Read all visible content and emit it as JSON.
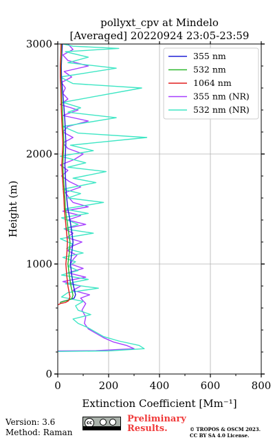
{
  "chart_data": {
    "type": "line",
    "title": "pollyxt_cpv at Mindelo",
    "subtitle": "[Averaged] 20220924 23:05-23:59",
    "xlabel": "Extinction Coefficient [Mm⁻¹]",
    "ylabel": "Height (m)",
    "xlim": [
      0,
      800
    ],
    "ylim": [
      0,
      3000
    ],
    "xticks": [
      0,
      200,
      400,
      600,
      800
    ],
    "yticks": [
      0,
      1000,
      2000,
      3000
    ],
    "grid": true,
    "legend_position": "top-right",
    "series": [
      {
        "name": "355 nm",
        "color": "#1f1fd6",
        "points": [
          [
            8,
            650
          ],
          [
            20,
            660
          ],
          [
            45,
            675
          ],
          [
            65,
            690
          ],
          [
            70,
            720
          ],
          [
            62,
            800
          ],
          [
            55,
            900
          ],
          [
            50,
            1000
          ],
          [
            55,
            1100
          ],
          [
            60,
            1200
          ],
          [
            55,
            1300
          ],
          [
            48,
            1400
          ],
          [
            40,
            1500
          ],
          [
            35,
            1600
          ],
          [
            32,
            1700
          ],
          [
            30,
            1800
          ],
          [
            28,
            1900
          ],
          [
            30,
            2000
          ],
          [
            32,
            2100
          ],
          [
            30,
            2200
          ],
          [
            28,
            2300
          ],
          [
            25,
            2400
          ],
          [
            22,
            2500
          ],
          [
            18,
            2600
          ],
          [
            15,
            2700
          ],
          [
            14,
            2800
          ],
          [
            16,
            2900
          ],
          [
            18,
            3000
          ]
        ]
      },
      {
        "name": "532 nm",
        "color": "#2bb82b",
        "points": [
          [
            8,
            650
          ],
          [
            20,
            658
          ],
          [
            40,
            670
          ],
          [
            55,
            685
          ],
          [
            60,
            715
          ],
          [
            52,
            800
          ],
          [
            45,
            900
          ],
          [
            40,
            1000
          ],
          [
            45,
            1100
          ],
          [
            48,
            1200
          ],
          [
            42,
            1300
          ],
          [
            36,
            1400
          ],
          [
            30,
            1500
          ],
          [
            28,
            1600
          ],
          [
            25,
            1700
          ],
          [
            22,
            1800
          ],
          [
            20,
            1900
          ],
          [
            22,
            2000
          ],
          [
            24,
            2100
          ],
          [
            22,
            2200
          ],
          [
            20,
            2300
          ],
          [
            18,
            2400
          ],
          [
            16,
            2500
          ],
          [
            14,
            2600
          ],
          [
            12,
            2700
          ],
          [
            12,
            2800
          ],
          [
            14,
            2900
          ],
          [
            15,
            3000
          ]
        ]
      },
      {
        "name": "1064 nm",
        "color": "#e01b1b",
        "points": [
          [
            2,
            630
          ],
          [
            10,
            640
          ],
          [
            30,
            650
          ],
          [
            42,
            665
          ],
          [
            48,
            700
          ],
          [
            40,
            800
          ],
          [
            35,
            900
          ],
          [
            32,
            1000
          ],
          [
            36,
            1100
          ],
          [
            38,
            1200
          ],
          [
            34,
            1300
          ],
          [
            30,
            1400
          ],
          [
            26,
            1500
          ],
          [
            24,
            1600
          ],
          [
            21,
            1700
          ],
          [
            18,
            1800
          ],
          [
            16,
            1900
          ],
          [
            18,
            2000
          ],
          [
            20,
            2100
          ],
          [
            18,
            2200
          ],
          [
            16,
            2300
          ],
          [
            14,
            2400
          ],
          [
            13,
            2500
          ],
          [
            12,
            2600
          ],
          [
            10,
            2700
          ],
          [
            10,
            2800
          ],
          [
            12,
            2900
          ],
          [
            13,
            3000
          ]
        ]
      },
      {
        "name": "355 nm (NR)",
        "color": "#a53dff",
        "points": [
          [
            2,
            210
          ],
          [
            150,
            212
          ],
          [
            300,
            230
          ],
          [
            270,
            260
          ],
          [
            220,
            290
          ],
          [
            180,
            330
          ],
          [
            150,
            370
          ],
          [
            120,
            410
          ],
          [
            105,
            460
          ],
          [
            110,
            520
          ],
          [
            95,
            580
          ],
          [
            110,
            640
          ],
          [
            90,
            690
          ],
          [
            125,
            720
          ],
          [
            60,
            760
          ],
          [
            90,
            800
          ],
          [
            20,
            840
          ],
          [
            110,
            880
          ],
          [
            40,
            920
          ],
          [
            100,
            960
          ],
          [
            50,
            1000
          ],
          [
            60,
            1040
          ],
          [
            75,
            1080
          ],
          [
            40,
            1120
          ],
          [
            55,
            1160
          ],
          [
            95,
            1200
          ],
          [
            35,
            1240
          ],
          [
            60,
            1280
          ],
          [
            25,
            1320
          ],
          [
            110,
            1360
          ],
          [
            40,
            1400
          ],
          [
            90,
            1440
          ],
          [
            20,
            1480
          ],
          [
            120,
            1520
          ],
          [
            60,
            1560
          ],
          [
            45,
            1600
          ],
          [
            30,
            1650
          ],
          [
            90,
            1700
          ],
          [
            45,
            1750
          ],
          [
            15,
            1800
          ],
          [
            40,
            1850
          ],
          [
            10,
            1900
          ],
          [
            65,
            1950
          ],
          [
            100,
            2000
          ],
          [
            40,
            2050
          ],
          [
            20,
            2100
          ],
          [
            60,
            2150
          ],
          [
            20,
            2200
          ],
          [
            40,
            2250
          ],
          [
            120,
            2300
          ],
          [
            20,
            2350
          ],
          [
            80,
            2400
          ],
          [
            10,
            2450
          ],
          [
            40,
            2500
          ],
          [
            20,
            2550
          ],
          [
            30,
            2600
          ],
          [
            15,
            2650
          ],
          [
            55,
            2700
          ],
          [
            25,
            2750
          ],
          [
            120,
            2800
          ],
          [
            40,
            2850
          ],
          [
            20,
            2900
          ],
          [
            60,
            2950
          ],
          [
            40,
            3000
          ]
        ]
      },
      {
        "name": "532 nm (NR)",
        "color": "#3de6c4",
        "points": [
          [
            2,
            205
          ],
          [
            200,
            210
          ],
          [
            340,
            230
          ],
          [
            320,
            260
          ],
          [
            240,
            300
          ],
          [
            180,
            340
          ],
          [
            150,
            380
          ],
          [
            120,
            420
          ],
          [
            80,
            460
          ],
          [
            60,
            500
          ],
          [
            130,
            540
          ],
          [
            80,
            580
          ],
          [
            70,
            620
          ],
          [
            100,
            660
          ],
          [
            15,
            700
          ],
          [
            40,
            740
          ],
          [
            160,
            780
          ],
          [
            30,
            820
          ],
          [
            120,
            860
          ],
          [
            15,
            900
          ],
          [
            80,
            940
          ],
          [
            40,
            980
          ],
          [
            70,
            1020
          ],
          [
            20,
            1060
          ],
          [
            100,
            1100
          ],
          [
            35,
            1140
          ],
          [
            60,
            1180
          ],
          [
            10,
            1230
          ],
          [
            140,
            1280
          ],
          [
            25,
            1320
          ],
          [
            80,
            1360
          ],
          [
            15,
            1420
          ],
          [
            120,
            1460
          ],
          [
            25,
            1500
          ],
          [
            180,
            1560
          ],
          [
            40,
            1600
          ],
          [
            90,
            1640
          ],
          [
            20,
            1680
          ],
          [
            150,
            1740
          ],
          [
            60,
            1780
          ],
          [
            190,
            1840
          ],
          [
            40,
            1880
          ],
          [
            110,
            1920
          ],
          [
            10,
            1980
          ],
          [
            140,
            2030
          ],
          [
            50,
            2080
          ],
          [
            350,
            2150
          ],
          [
            80,
            2190
          ],
          [
            20,
            2250
          ],
          [
            230,
            2330
          ],
          [
            40,
            2380
          ],
          [
            90,
            2420
          ],
          [
            20,
            2470
          ],
          [
            330,
            2600
          ],
          [
            60,
            2640
          ],
          [
            10,
            2700
          ],
          [
            230,
            2780
          ],
          [
            40,
            2830
          ],
          [
            120,
            2880
          ],
          [
            30,
            2930
          ],
          [
            240,
            2960
          ],
          [
            60,
            2980
          ],
          [
            20,
            3000
          ]
        ]
      }
    ]
  },
  "footer": {
    "version_line": "Version: 3.6",
    "method_line": "Method: Raman",
    "badge_text": "cc",
    "preliminary_line1": "Preliminary",
    "preliminary_line2": "Results.",
    "copyright_line1": "© TROPOS & OSCM 2023.",
    "copyright_line2": "CC BY SA 4.0 License."
  }
}
